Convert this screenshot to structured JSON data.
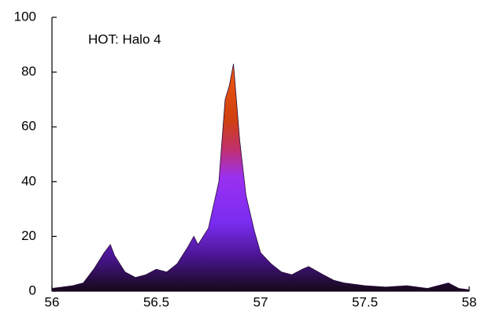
{
  "chart_data": {
    "type": "area",
    "annotation": "HOT: Halo 4",
    "x": [
      56.0,
      56.05,
      56.1,
      56.15,
      56.2,
      56.25,
      56.28,
      56.3,
      56.35,
      56.4,
      56.45,
      56.5,
      56.55,
      56.6,
      56.65,
      56.68,
      56.7,
      56.75,
      56.8,
      56.83,
      56.85,
      56.87,
      56.9,
      56.93,
      56.97,
      57.0,
      57.05,
      57.1,
      57.15,
      57.2,
      57.23,
      57.3,
      57.35,
      57.4,
      57.5,
      57.6,
      57.7,
      57.8,
      57.9,
      57.95,
      58.0
    ],
    "values": [
      1,
      1.5,
      2,
      3,
      8,
      14,
      17,
      13,
      7,
      5,
      6,
      8,
      7,
      10,
      16,
      20,
      17,
      23,
      40,
      70,
      75,
      83,
      55,
      35,
      22,
      14,
      10,
      7,
      6,
      8,
      9,
      6,
      4,
      3,
      2,
      1.5,
      2,
      1,
      3,
      1,
      0.5
    ],
    "xlim": [
      56,
      58
    ],
    "xticks": [
      56,
      56.5,
      57,
      57.5,
      58
    ],
    "ylim": [
      0,
      100
    ],
    "yticks": [
      0,
      20,
      40,
      60,
      80,
      100
    ],
    "grid": false
  }
}
